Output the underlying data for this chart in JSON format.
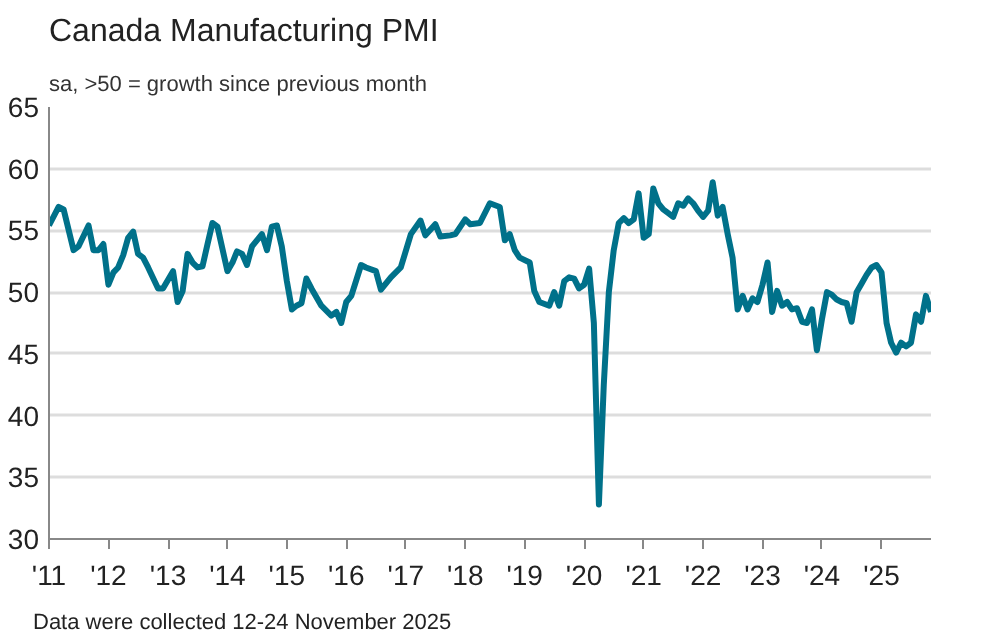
{
  "chart_data": {
    "type": "line",
    "title": "Canada Manufacturing PMI",
    "subtitle": "sa, >50 = growth since previous month",
    "annotations": [
      "Data were collected 12-24 November 2025"
    ],
    "x": [
      "2011-01",
      "2011-03",
      "2011-04",
      "2011-06",
      "2011-07",
      "2011-09",
      "2011-10",
      "2011-11",
      "2011-12",
      "2012-01",
      "2012-02",
      "2012-03",
      "2012-04",
      "2012-05",
      "2012-06",
      "2012-07",
      "2012-08",
      "2012-09",
      "2012-11",
      "2012-12",
      "2013-02",
      "2013-03",
      "2013-04",
      "2013-05",
      "2013-06",
      "2013-07",
      "2013-08",
      "2013-09",
      "2013-10",
      "2013-11",
      "2014-01",
      "2014-02",
      "2014-03",
      "2014-04",
      "2014-05",
      "2014-06",
      "2014-08",
      "2014-09",
      "2014-10",
      "2014-11",
      "2014-12",
      "2015-01",
      "2015-02",
      "2015-03",
      "2015-04",
      "2015-05",
      "2015-06",
      "2015-08",
      "2015-10",
      "2015-11",
      "2015-12",
      "2016-01",
      "2016-02",
      "2016-04",
      "2016-05",
      "2016-07",
      "2016-08",
      "2016-10",
      "2016-12",
      "2017-02",
      "2017-04",
      "2017-05",
      "2017-07",
      "2017-08",
      "2017-10",
      "2017-11",
      "2018-01",
      "2018-02",
      "2018-04",
      "2018-06",
      "2018-08",
      "2018-09",
      "2018-10",
      "2018-11",
      "2018-12",
      "2019-02",
      "2019-03",
      "2019-04",
      "2019-06",
      "2019-07",
      "2019-08",
      "2019-09",
      "2019-10",
      "2019-11",
      "2019-12",
      "2020-01",
      "2020-02",
      "2020-03",
      "2020-04",
      "2020-05",
      "2020-06",
      "2020-07",
      "2020-08",
      "2020-09",
      "2020-10",
      "2020-11",
      "2020-12",
      "2021-01",
      "2021-02",
      "2021-03",
      "2021-04",
      "2021-05",
      "2021-06",
      "2021-07",
      "2021-08",
      "2021-09",
      "2021-10",
      "2021-11",
      "2021-12",
      "2022-01",
      "2022-02",
      "2022-03",
      "2022-04",
      "2022-05",
      "2022-06",
      "2022-07",
      "2022-08",
      "2022-09",
      "2022-10",
      "2022-11",
      "2022-12",
      "2023-01",
      "2023-02",
      "2023-03",
      "2023-04",
      "2023-05",
      "2023-06",
      "2023-07",
      "2023-08",
      "2023-09",
      "2023-10",
      "2023-11",
      "2023-12",
      "2024-01",
      "2024-02",
      "2024-03",
      "2024-04",
      "2024-05",
      "2024-06",
      "2024-07",
      "2024-08",
      "2024-09",
      "2024-10",
      "2024-11",
      "2024-12",
      "2025-01",
      "2025-02",
      "2025-03",
      "2025-04",
      "2025-05",
      "2025-06",
      "2025-07",
      "2025-08",
      "2025-09",
      "2025-10",
      "2025-11"
    ],
    "series": [
      {
        "color": "#00718a",
        "values": [
          55.4,
          56.9,
          56.7,
          53.4,
          53.7,
          55.4,
          53.4,
          53.4,
          53.9,
          50.6,
          51.6,
          52.0,
          53.0,
          54.4,
          54.9,
          53.1,
          52.8,
          52.0,
          50.3,
          50.3,
          51.7,
          49.2,
          50.1,
          53.1,
          52.4,
          52.0,
          52.1,
          53.9,
          55.6,
          55.3,
          51.7,
          52.4,
          53.3,
          53.1,
          52.2,
          53.7,
          54.7,
          53.4,
          55.3,
          55.4,
          53.7,
          50.9,
          48.6,
          48.9,
          49.1,
          51.1,
          50.3,
          48.9,
          48.1,
          48.4,
          47.5,
          49.2,
          49.7,
          52.2,
          52.0,
          51.7,
          50.2,
          51.2,
          52.0,
          54.7,
          55.8,
          54.6,
          55.5,
          54.5,
          54.6,
          54.7,
          55.9,
          55.5,
          55.6,
          57.2,
          56.9,
          54.2,
          54.7,
          53.4,
          52.8,
          52.4,
          50.1,
          49.2,
          48.9,
          50.0,
          48.9,
          50.9,
          51.2,
          51.1,
          50.3,
          50.6,
          51.9,
          47.5,
          32.8,
          42.5,
          50.0,
          53.4,
          55.6,
          56.0,
          55.6,
          55.9,
          58.0,
          54.4,
          54.7,
          58.4,
          57.2,
          56.7,
          56.4,
          56.1,
          57.2,
          57.0,
          57.6,
          57.2,
          56.6,
          56.1,
          56.6,
          58.9,
          56.2,
          56.9,
          54.7,
          52.8,
          48.6,
          49.7,
          48.6,
          49.5,
          49.2,
          50.6,
          52.4,
          48.4,
          50.1,
          48.9,
          49.2,
          48.6,
          48.7,
          47.6,
          47.5,
          48.6,
          45.3,
          47.8,
          50.0,
          49.8,
          49.4,
          49.2,
          49.1,
          47.6,
          50.0,
          50.7,
          51.4,
          52.0,
          52.2,
          51.6,
          47.5,
          45.9,
          45.1,
          45.9,
          45.6,
          45.9,
          48.2,
          47.6,
          49.7,
          48.4
        ]
      }
    ],
    "xlim": [
      "2011-01",
      "2025-11"
    ],
    "xticks": [
      {
        "value": "2011-01",
        "label": "'11"
      },
      {
        "value": "2012-01",
        "label": "'12"
      },
      {
        "value": "2013-01",
        "label": "'13"
      },
      {
        "value": "2014-01",
        "label": "'14"
      },
      {
        "value": "2015-01",
        "label": "'15"
      },
      {
        "value": "2016-01",
        "label": "'16"
      },
      {
        "value": "2017-01",
        "label": "'17"
      },
      {
        "value": "2018-01",
        "label": "'18"
      },
      {
        "value": "2019-01",
        "label": "'19"
      },
      {
        "value": "2020-01",
        "label": "'20"
      },
      {
        "value": "2021-01",
        "label": "'21"
      },
      {
        "value": "2022-01",
        "label": "'22"
      },
      {
        "value": "2023-01",
        "label": "'23"
      },
      {
        "value": "2024-01",
        "label": "'24"
      },
      {
        "value": "2025-01",
        "label": "'25"
      }
    ],
    "ylim": [
      30,
      65
    ],
    "yticks": [
      30,
      35,
      40,
      45,
      50,
      55,
      60,
      65
    ],
    "grid": "y",
    "marker": "none",
    "line_style": "solid"
  }
}
